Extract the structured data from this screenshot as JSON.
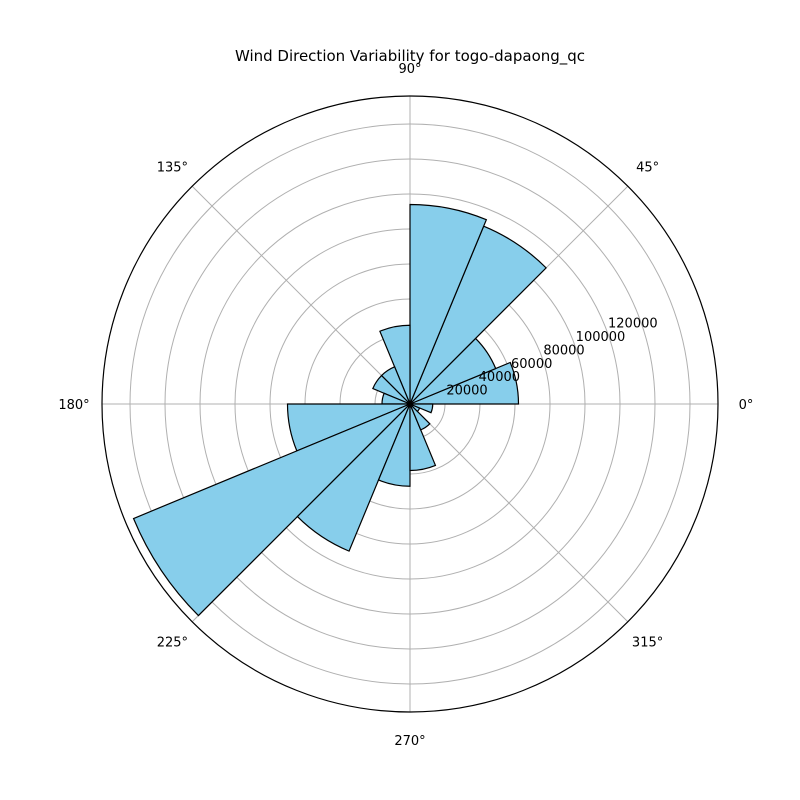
{
  "chart_data": {
    "type": "bar",
    "subtype": "polar-rose",
    "title": "Wind Direction Variability for togo-dapaong_qc",
    "theta_tick_labels": [
      "0°",
      "45°",
      "90°",
      "135°",
      "180°",
      "225°",
      "270°",
      "315°"
    ],
    "r_tick_labels": [
      "20000",
      "40000",
      "60000",
      "80000",
      "100000",
      "120000"
    ],
    "r_ticks": [
      20000,
      40000,
      60000,
      80000,
      100000,
      120000
    ],
    "r_gridlines": [
      20000,
      40000,
      60000,
      80000,
      100000,
      120000,
      140000,
      160000
    ],
    "rlim": [
      0,
      176000
    ],
    "bin_width_deg": 22.5,
    "categories": [
      "0°",
      "22.5°",
      "45°",
      "67.5°",
      "90°",
      "112.5°",
      "135°",
      "157.5°",
      "180°",
      "202.5°",
      "225°",
      "247.5°",
      "270°",
      "292.5°",
      "315°",
      "337.5°"
    ],
    "bin_starts_deg": [
      0,
      22.5,
      45,
      67.5,
      90,
      112.5,
      135,
      157.5,
      180,
      202.5,
      225,
      247.5,
      270,
      292.5,
      315,
      337.5
    ],
    "values": [
      62000,
      53000,
      110000,
      114000,
      45000,
      23000,
      23000,
      16000,
      70000,
      171000,
      91000,
      47000,
      38000,
      16000,
      6000,
      13000
    ],
    "grid": true,
    "bar_color": "#87ceeb",
    "edge_color": "#000000",
    "grid_color": "#b0b0b0"
  }
}
